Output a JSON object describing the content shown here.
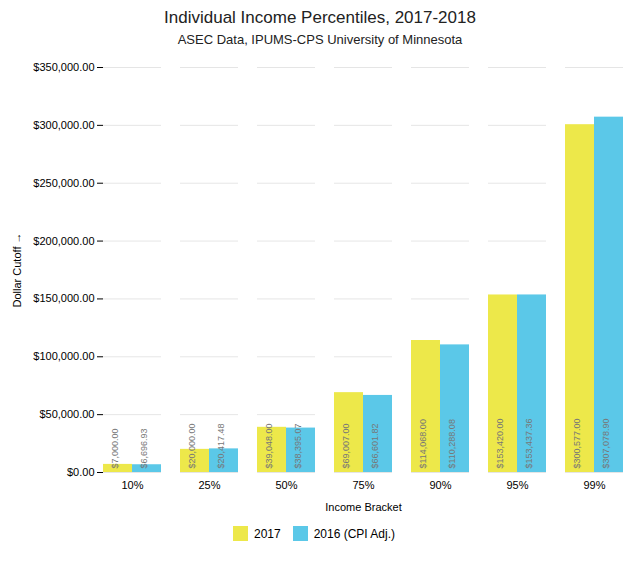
{
  "chart_data": {
    "type": "bar",
    "title": "Individual Income Percentiles, 2017-2018",
    "subtitle": "ASEC Data, IPUMS-CPS University of Minnesota",
    "xlabel": "Income Bracket",
    "ylabel": "Dollar Cutoff",
    "categories": [
      "10%",
      "25%",
      "50%",
      "75%",
      "90%",
      "95%",
      "99%"
    ],
    "series": [
      {
        "name": "2017",
        "color": "#EDE84A",
        "values": [
          7000.0,
          20000.0,
          39048.0,
          69007.0,
          114068.0,
          153420.0,
          300577.0
        ],
        "value_labels": [
          "$7,000.00",
          "$20,000.00",
          "$39,048.00",
          "$69,007.00",
          "$114,068.00",
          "$153,420.00",
          "$300,577.00"
        ]
      },
      {
        "name": "2016 (CPI Adj.)",
        "color": "#5BC8E8",
        "values": [
          6696.93,
          20417.48,
          38395.07,
          66601.82,
          110288.08,
          153437.36,
          307078.9
        ],
        "value_labels": [
          "$6,696.93",
          "$20,417.48",
          "$38,395.07",
          "$66,601.82",
          "$110,288.08",
          "$153,437.36",
          "$307,078.90"
        ]
      }
    ],
    "ylim": [
      0,
      350000
    ],
    "yticks": [
      {
        "value": 0,
        "label": "$0.00"
      },
      {
        "value": 50000,
        "label": "$50,000.00"
      },
      {
        "value": 100000,
        "label": "$100,000.00"
      },
      {
        "value": 150000,
        "label": "$150,000.00"
      },
      {
        "value": 200000,
        "label": "$200,000.00"
      },
      {
        "value": 250000,
        "label": "$250,000.00"
      },
      {
        "value": 300000,
        "label": "$300,000.00"
      },
      {
        "value": 350000,
        "label": "$350,000.00"
      }
    ],
    "grid": true,
    "legend": "bottom",
    "data_labels": true
  }
}
